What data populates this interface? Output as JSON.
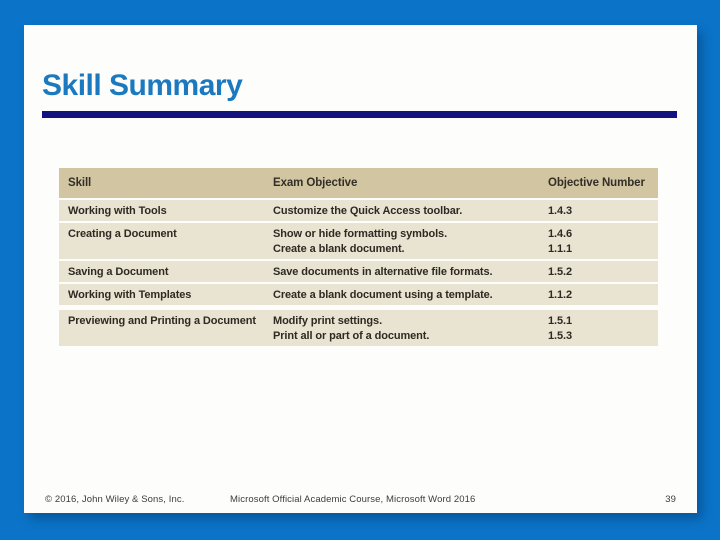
{
  "slide": {
    "title": "Skill Summary",
    "colors": {
      "border_blue": "#0b74c8",
      "title_blue": "#1b79c0",
      "rule_navy": "#12137c",
      "table_header_tan": "#d2c5a2",
      "table_row_tan": "#e9e3d1"
    },
    "table": {
      "headers": [
        "Skill",
        "Exam Objective",
        "Objective Number"
      ],
      "rows": [
        {
          "skill": "Working with Tools",
          "objectives": [
            "Customize the Quick Access toolbar."
          ],
          "numbers": [
            "1.4.3"
          ]
        },
        {
          "skill": "Creating a Document",
          "objectives": [
            "Show or hide formatting symbols.",
            "Create a blank document."
          ],
          "numbers": [
            "1.4.6",
            "1.1.1"
          ]
        },
        {
          "skill": "Saving a Document",
          "objectives": [
            "Save documents in alternative file formats."
          ],
          "numbers": [
            "1.5.2"
          ]
        },
        {
          "skill": "Working with Templates",
          "objectives": [
            "Create a blank document using a template."
          ],
          "numbers": [
            "1.1.2"
          ]
        },
        {
          "skill": "Previewing and Printing a Document",
          "objectives": [
            "Modify print settings.",
            "Print all or part of a document."
          ],
          "numbers": [
            "1.5.1",
            "1.5.3"
          ]
        }
      ]
    },
    "footer": {
      "copyright": "© 2016, John Wiley & Sons, Inc.",
      "course": "Microsoft Official Academic Course, Microsoft Word 2016",
      "page_number": "39"
    }
  }
}
